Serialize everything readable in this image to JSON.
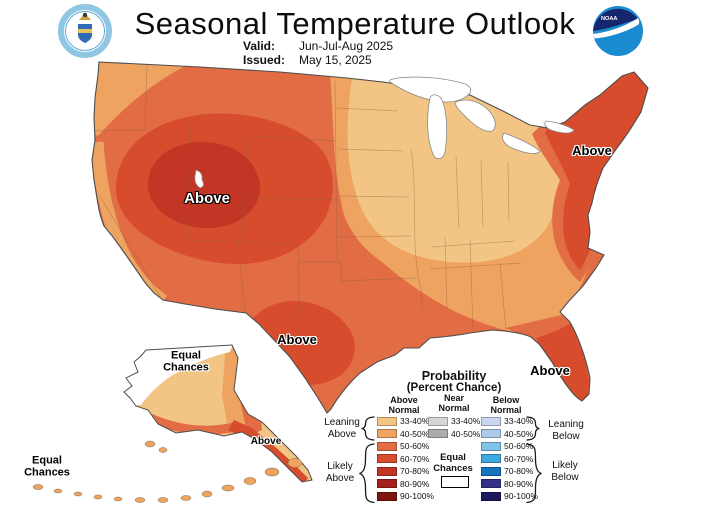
{
  "header": {
    "title": "Seasonal Temperature Outlook",
    "valid_label": "Valid:",
    "valid_value": "Jun-Jul-Aug 2025",
    "issued_label": "Issued:",
    "issued_value": "May 15, 2025",
    "noaa_logo_text": "NOAA"
  },
  "map": {
    "labels": {
      "west": "Above",
      "texas": "Above",
      "northeast": "Above",
      "florida": "Above",
      "alaska_panhandle": "Above",
      "alaska_north": "Equal Chances",
      "aleutians": "Equal Chances"
    }
  },
  "legend": {
    "title_line1": "Probability",
    "title_line2": "(Percent Chance)",
    "columns": [
      "Above Normal",
      "Near Normal",
      "Below Normal"
    ],
    "rows": [
      "33-40%",
      "40-50%",
      "50-60%",
      "60-70%",
      "70-80%",
      "80-90%",
      "90-100%"
    ],
    "near_rows": [
      "33-40%",
      "40-50%"
    ],
    "above_colors": [
      "#F2C585",
      "#EFA361",
      "#E26C44",
      "#D74C2C",
      "#C33524",
      "#A32019",
      "#7E150E"
    ],
    "near_colors": [
      "#D6D6D6",
      "#ABABAB"
    ],
    "below_colors": [
      "#C9D6EE",
      "#ADCBE9",
      "#82C3E9",
      "#3FA8DF",
      "#1474BC",
      "#333185",
      "#1C1A5E"
    ],
    "equal_chances_label": "Equal Chances",
    "group_labels": {
      "leaning_above": "Leaning Above",
      "likely_above": "Likely Above",
      "leaning_below": "Leaning Below",
      "likely_below": "Likely Below"
    }
  },
  "colors": {
    "above_33_40": "#F2C585",
    "above_40_50": "#EFA361",
    "above_50_60": "#E26C44",
    "above_60_70": "#D74C2C",
    "above_70_80": "#C33524",
    "map_outline": "#4D4D4D",
    "state_line": "#8B5E3C",
    "lake_fill": "#FFFFFF",
    "lake_stroke": "#8A8A8A",
    "equal_chances_fill": "#FFFFFF",
    "brace": "#1A1A1A"
  }
}
